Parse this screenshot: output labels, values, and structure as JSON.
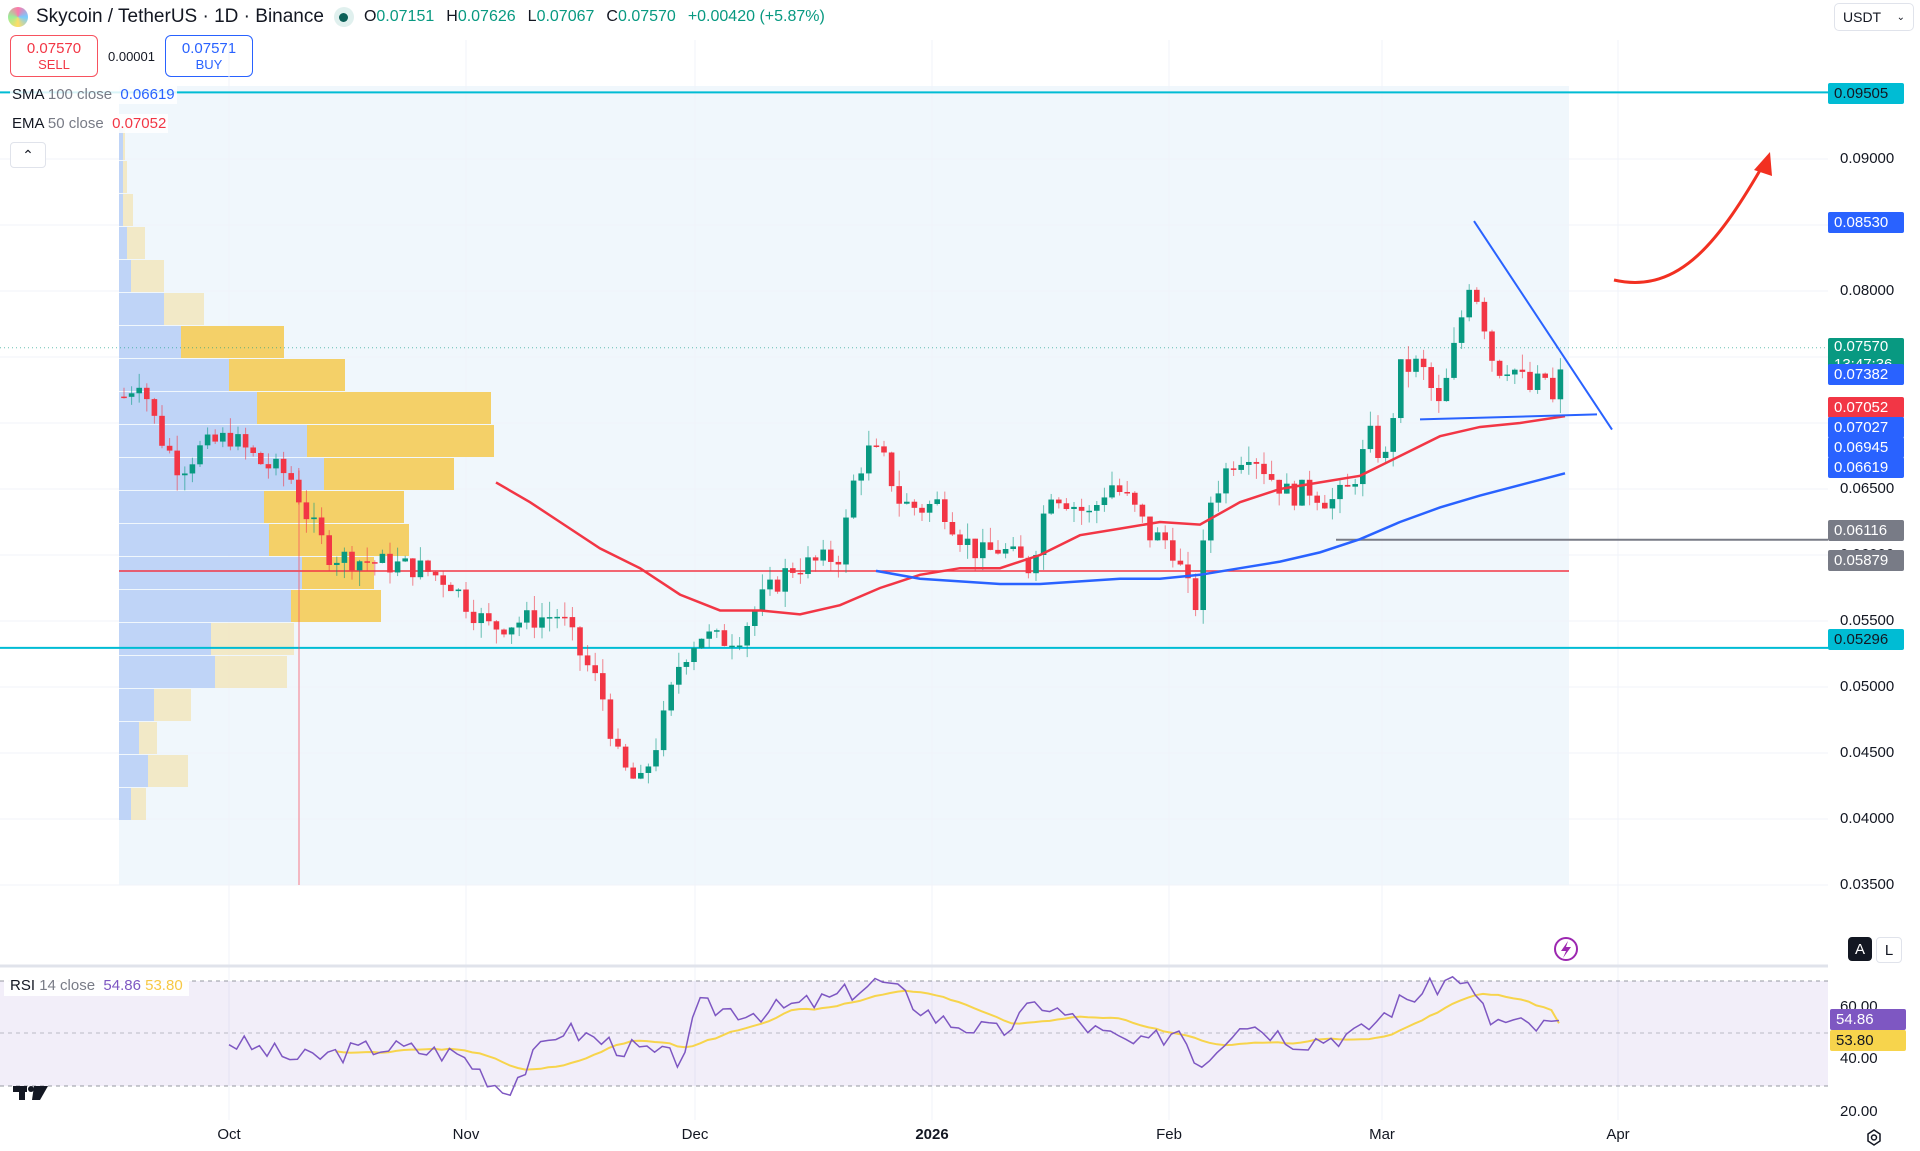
{
  "header": {
    "symbol": "Skycoin / TetherUS · 1D · Binance",
    "ohlc": {
      "o_label": "O",
      "o": "0.07151",
      "h_label": "H",
      "h": "0.07626",
      "l_label": "L",
      "l": "0.07067",
      "c_label": "C",
      "c": "0.07570",
      "change": "+0.00420 (+5.87%)"
    }
  },
  "trade": {
    "sell_price": "0.07570",
    "sell_label": "SELL",
    "spread": "0.00001",
    "buy_price": "0.07571",
    "buy_label": "BUY"
  },
  "currency": {
    "label": "USDT",
    "icon": "chevron-down-icon"
  },
  "indicators": {
    "sma": {
      "name": "SMA",
      "params": "100 close",
      "value": "0.06619",
      "color": "#2962ff"
    },
    "ema": {
      "name": "EMA",
      "params": "50 close",
      "value": "0.07052",
      "color": "#f23645"
    },
    "rsi": {
      "name": "RSI",
      "params": "14 close",
      "value": "54.86",
      "ma_value": "53.80",
      "color": "#7e57c2",
      "ma_color": "#f7d44c"
    }
  },
  "price_axis": {
    "ticks": [
      "0.09000",
      "0.08000",
      "0.06500",
      "0.06000",
      "0.05500",
      "0.05000",
      "0.04500",
      "0.04000",
      "0.03500"
    ],
    "tags": [
      {
        "value": "0.09505",
        "bg": "#00bcd4",
        "fg": "#131722"
      },
      {
        "value": "0.08530",
        "bg": "#2962ff",
        "fg": "#ffffff"
      },
      {
        "value": "0.07570",
        "sub": "13:47:36",
        "bg": "#089981",
        "fg": "#ffffff"
      },
      {
        "value": "0.07382",
        "bg": "#2962ff",
        "fg": "#ffffff"
      },
      {
        "value": "0.07052",
        "bg": "#f23645",
        "fg": "#ffffff"
      },
      {
        "value": "0.07027",
        "bg": "#2962ff",
        "fg": "#ffffff"
      },
      {
        "value": "0.06945",
        "bg": "#2962ff",
        "fg": "#ffffff"
      },
      {
        "value": "0.06619",
        "bg": "#2962ff",
        "fg": "#ffffff"
      },
      {
        "value": "0.06116",
        "bg": "#787b86",
        "fg": "#ffffff"
      },
      {
        "value": "0.05879",
        "bg": "#787b86",
        "fg": "#ffffff"
      },
      {
        "value": "0.05296",
        "bg": "#00bcd4",
        "fg": "#131722"
      }
    ]
  },
  "rsi_axis": {
    "ticks": [
      "60.00",
      "40.00",
      "20.00"
    ],
    "value_tag": "54.86",
    "ma_tag": "53.80"
  },
  "time_axis": {
    "labels": [
      "Oct",
      "Nov",
      "Dec",
      "2026",
      "Feb",
      "Mar",
      "Apr"
    ]
  },
  "buttons": {
    "auto": "A",
    "log": "L"
  },
  "chart_data": {
    "type": "candlestick",
    "title": "Skycoin / TetherUS · 1D · Binance",
    "xlabel": "",
    "ylabel": "USDT",
    "ylim": [
      0.035,
      0.097
    ],
    "x_ticks": [
      "Oct",
      "Nov",
      "Dec",
      "2026",
      "Feb",
      "Mar",
      "Apr"
    ],
    "horizontal_levels": {
      "resistance_top": 0.09505,
      "support_bottom": 0.05296,
      "poc": 0.05879,
      "gray_level": 0.06116
    },
    "trendlines": [
      {
        "name": "descending-resistance",
        "from": {
          "date": "Mar 13",
          "price": 0.0853
        },
        "to": {
          "date": "Mar 28",
          "price": 0.0695
        }
      },
      {
        "name": "ascending-support",
        "from": {
          "date": "Mar 2",
          "price": 0.0702
        },
        "to": {
          "date": "Mar 27",
          "price": 0.0707
        }
      }
    ],
    "annotation": "red upward arrow projecting toward 0.09",
    "last_close": 0.0757,
    "series": [
      {
        "name": "SMA 100 close",
        "last": 0.06619
      },
      {
        "name": "EMA 50 close",
        "last": 0.07052
      }
    ],
    "rsi": {
      "period": 14,
      "last": 54.86,
      "ma_last": 53.8,
      "bands": [
        30,
        70
      ]
    }
  }
}
